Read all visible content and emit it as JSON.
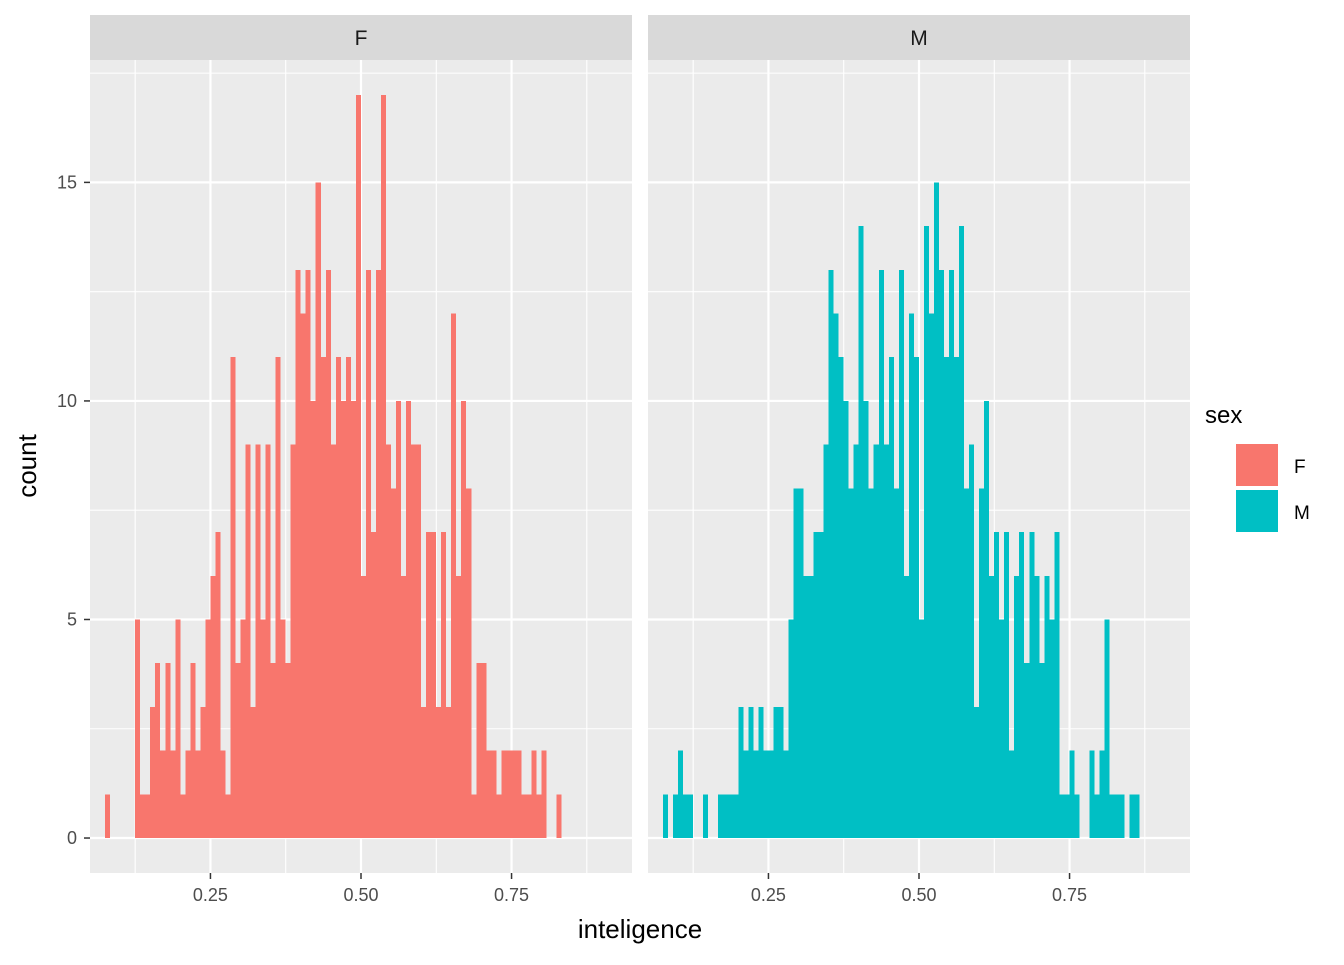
{
  "chart_data": {
    "type": "histogram",
    "facet_by": "sex",
    "xlabel": "inteligence",
    "ylabel": "count",
    "x_ticks": [
      0.25,
      0.5,
      0.75
    ],
    "x_tick_labels": [
      "0.25",
      "0.50",
      "0.75"
    ],
    "y_ticks": [
      0,
      5,
      10,
      15
    ],
    "y_tick_labels": [
      "0",
      "5",
      "10",
      "15"
    ],
    "xlim": [
      0.05,
      0.95
    ],
    "ylim": [
      -0.8,
      17.8
    ],
    "bin_start": 0.075,
    "bin_width": 0.00833,
    "grid": true,
    "legend": {
      "title": "sex",
      "placement": "right",
      "entries": [
        {
          "label": "F",
          "color": "#F8766D"
        },
        {
          "label": "M",
          "color": "#00BFC4"
        }
      ]
    },
    "panels": [
      {
        "label": "F",
        "color": "#F8766D",
        "counts": [
          1,
          0,
          0,
          0,
          0,
          0,
          5,
          1,
          1,
          3,
          4,
          2,
          4,
          2,
          5,
          1,
          2,
          4,
          2,
          3,
          5,
          6,
          7,
          2,
          1,
          11,
          4,
          5,
          9,
          3,
          9,
          5,
          9,
          4,
          11,
          5,
          4,
          9,
          13,
          12,
          13,
          10,
          15,
          11,
          13,
          9,
          11,
          10,
          11,
          10,
          17,
          6,
          13,
          7,
          13,
          17,
          9,
          8,
          10,
          6,
          10,
          9,
          9,
          3,
          7,
          7,
          3,
          7,
          3,
          12,
          6,
          10,
          8,
          1,
          4,
          4,
          2,
          2,
          1,
          2,
          2,
          2,
          2,
          1,
          1,
          2,
          1,
          2,
          0,
          0,
          1
        ]
      },
      {
        "label": "M",
        "color": "#00BFC4",
        "counts": [
          1,
          0,
          1,
          2,
          1,
          1,
          0,
          0,
          1,
          0,
          0,
          1,
          1,
          1,
          1,
          3,
          2,
          3,
          2,
          3,
          2,
          2,
          3,
          3,
          2,
          5,
          8,
          8,
          6,
          6,
          7,
          7,
          9,
          13,
          12,
          11,
          10,
          8,
          9,
          14,
          10,
          8,
          9,
          13,
          9,
          11,
          8,
          13,
          6,
          12,
          11,
          5,
          14,
          12,
          15,
          13,
          11,
          13,
          11,
          14,
          8,
          9,
          3,
          8,
          10,
          6,
          7,
          5,
          7,
          2,
          6,
          7,
          4,
          7,
          6,
          4,
          6,
          5,
          7,
          1,
          1,
          2,
          1,
          0,
          0,
          2,
          1,
          2,
          5,
          1,
          1,
          1,
          0,
          1,
          1
        ]
      }
    ]
  }
}
